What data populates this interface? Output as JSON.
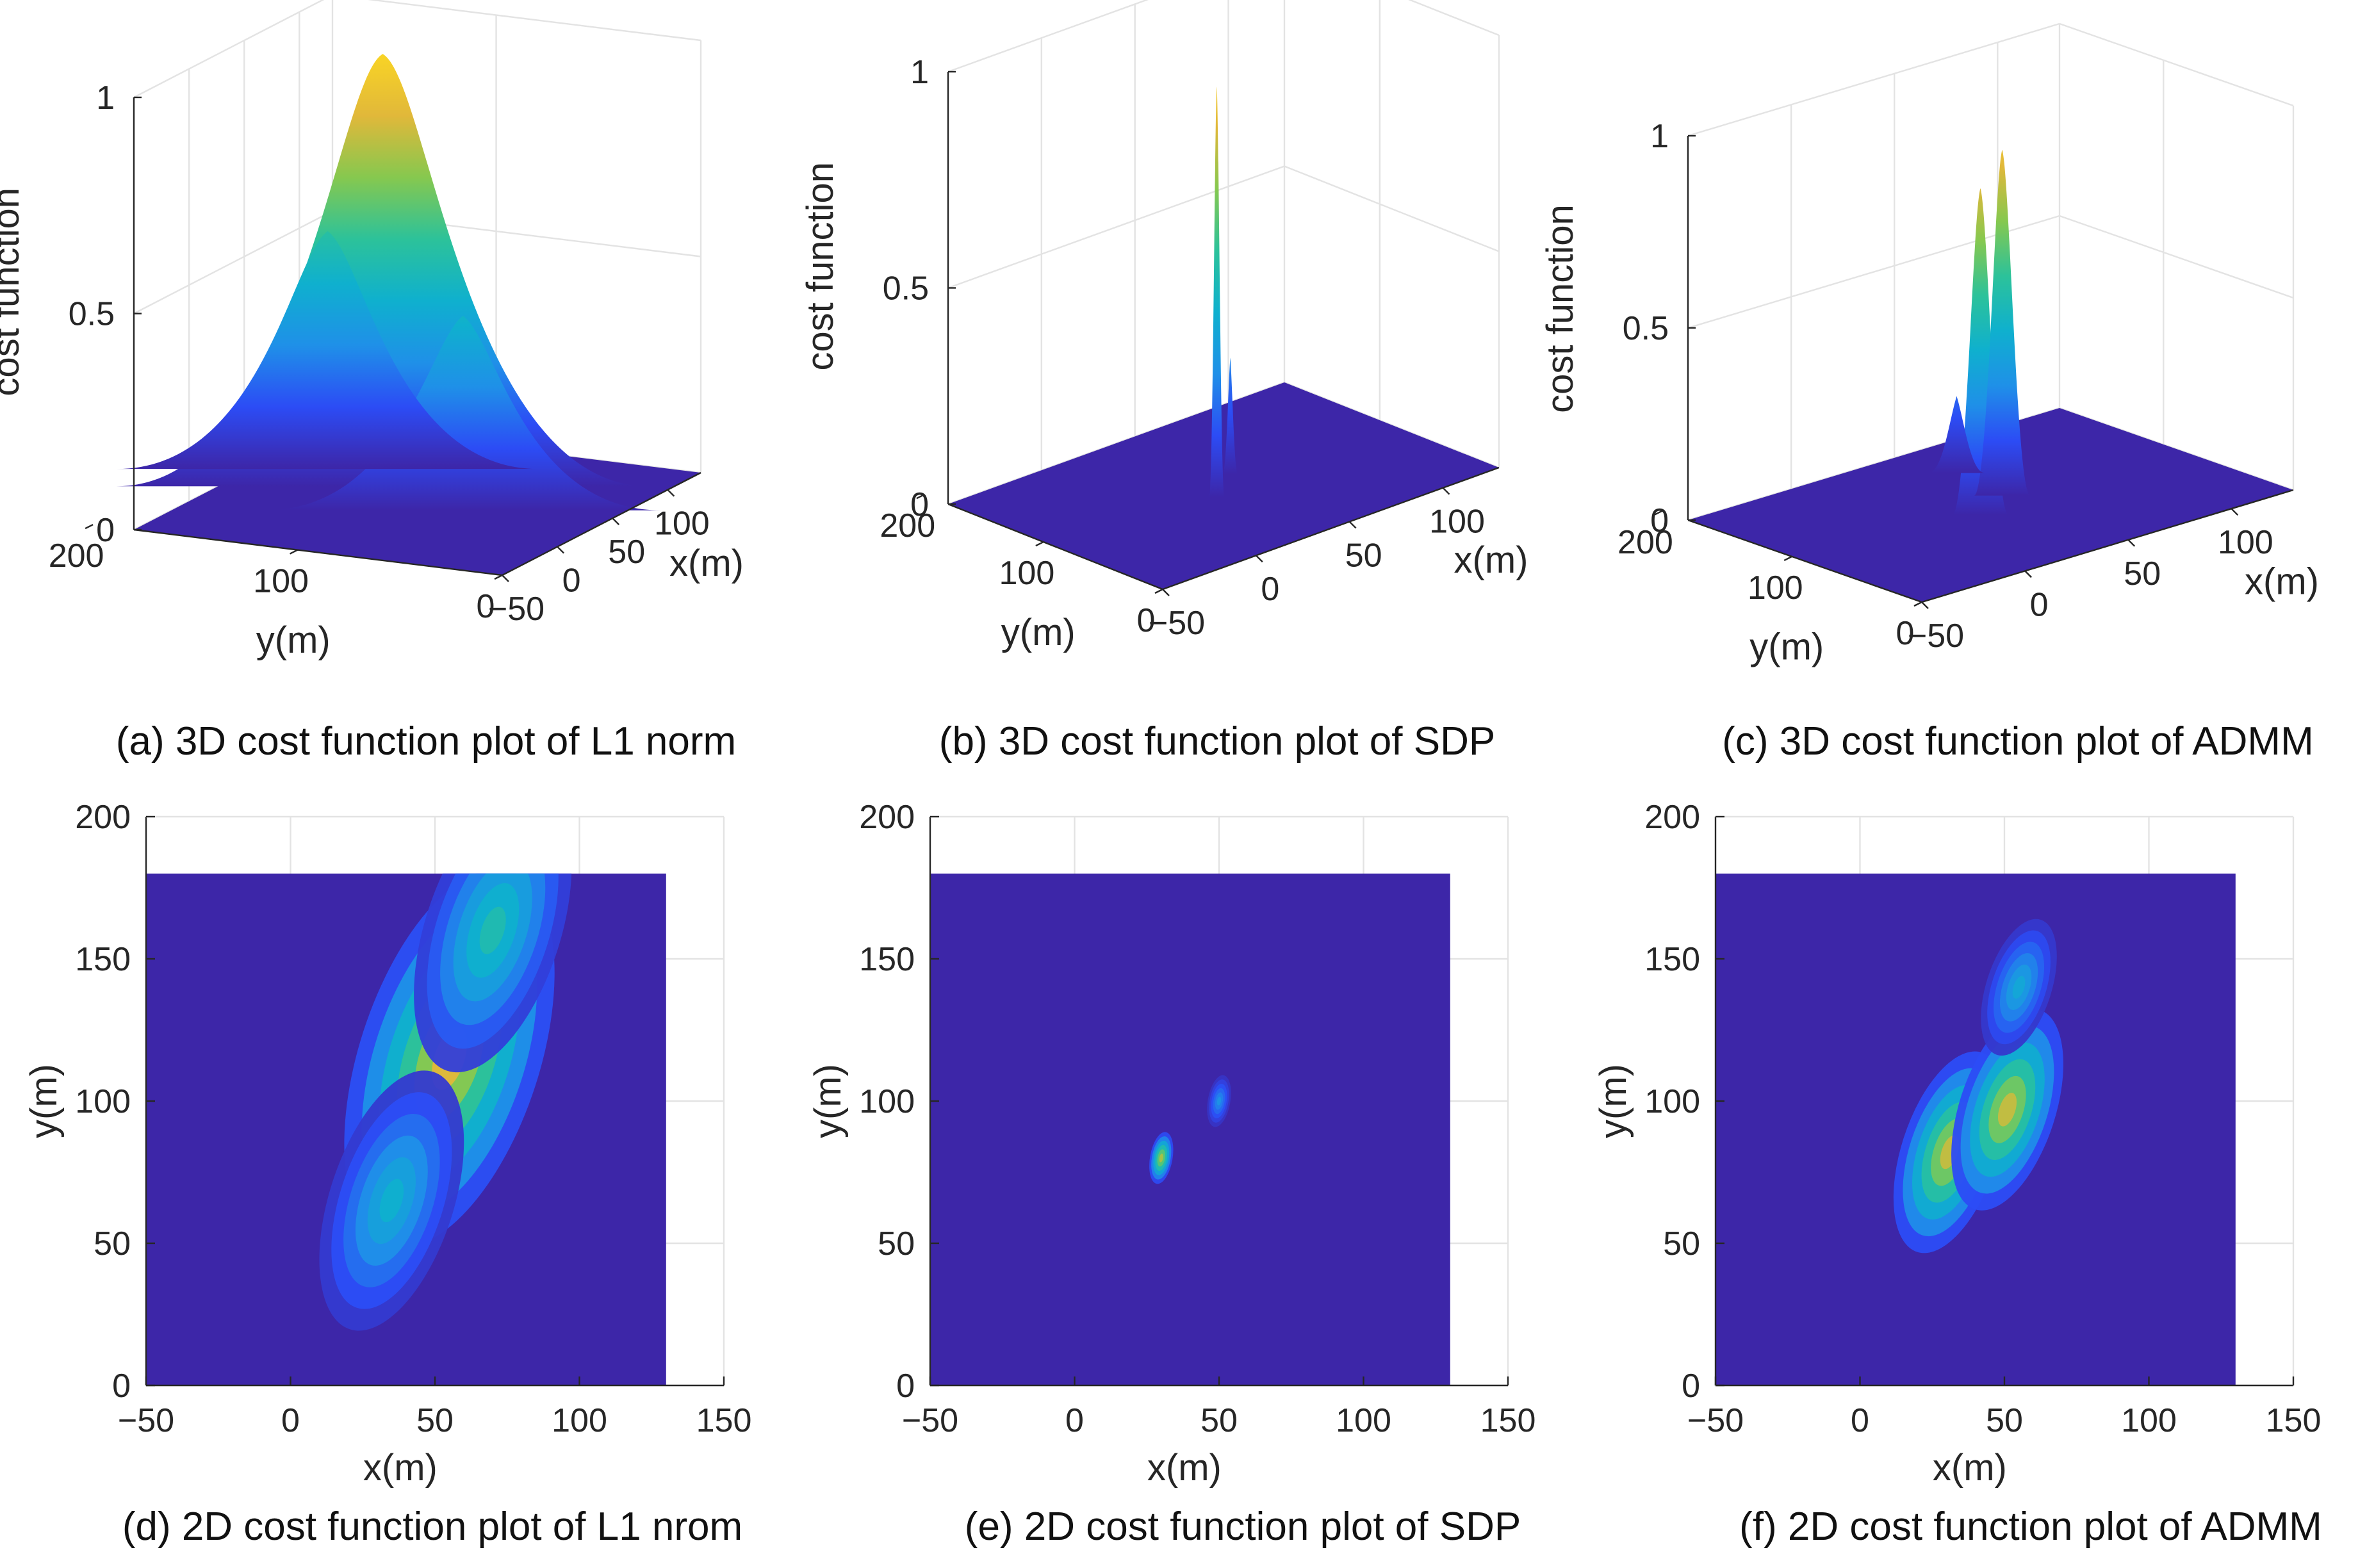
{
  "figure": {
    "captions": [
      "(a) 3D cost function plot of L1 norm",
      "(b) 3D cost function plot of SDP",
      "(c) 3D cost function plot of ADMM",
      "(d) 2D cost function plot of L1 nrom",
      "(e) 2D cost function plot of SDP",
      "(f) 2D cost function plot of ADMM"
    ]
  },
  "chart_data": [
    {
      "id": "a",
      "type": "surface3d",
      "title": "(a) 3D cost function plot of L1 norm",
      "xlabel": "x(m)",
      "ylabel": "y(m)",
      "zlabel": "cost function",
      "xlim": [
        -50,
        130
      ],
      "ylim": [
        0,
        180
      ],
      "zlim": [
        0,
        1
      ],
      "xticks": [
        -50,
        0,
        50,
        100
      ],
      "yticks": [
        0,
        100,
        200
      ],
      "zticks": [
        0,
        0.5,
        1
      ],
      "peaks": [
        {
          "x": 55,
          "y": 115,
          "z": 1.0
        },
        {
          "x": 35,
          "y": 65,
          "z": 0.45
        },
        {
          "x": 70,
          "y": 150,
          "z": 0.55
        }
      ]
    },
    {
      "id": "b",
      "type": "surface3d",
      "title": "(b) 3D cost function plot of SDP",
      "xlabel": "x(m)",
      "ylabel": "y(m)",
      "zlabel": "cost function",
      "xlim": [
        -50,
        130
      ],
      "ylim": [
        0,
        180
      ],
      "zlim": [
        0,
        1
      ],
      "xticks": [
        -50,
        0,
        50,
        100
      ],
      "yticks": [
        0,
        100,
        200
      ],
      "zticks": [
        0,
        0.5,
        1
      ],
      "peaks": [
        {
          "x": 30,
          "y": 80,
          "z": 0.95
        },
        {
          "x": 50,
          "y": 100,
          "z": 0.27
        }
      ]
    },
    {
      "id": "c",
      "type": "surface3d",
      "title": "(c) 3D cost function plot of ADMM",
      "xlabel": "x(m)",
      "ylabel": "y(m)",
      "zlabel": "cost function",
      "xlim": [
        -50,
        130
      ],
      "ylim": [
        0,
        180
      ],
      "zlim": [
        0,
        1
      ],
      "xticks": [
        -50,
        0,
        50,
        100
      ],
      "yticks": [
        0,
        100,
        200
      ],
      "zticks": [
        0,
        0.5,
        1
      ],
      "peaks": [
        {
          "x": 30,
          "y": 82,
          "z": 0.85
        },
        {
          "x": 50,
          "y": 97,
          "z": 0.9
        },
        {
          "x": 55,
          "y": 140,
          "z": 0.2
        }
      ]
    },
    {
      "id": "d",
      "type": "heatmap",
      "title": "(d) 2D cost function plot of L1 nrom",
      "xlabel": "x(m)",
      "ylabel": "y(m)",
      "xlim": [
        -50,
        150
      ],
      "ylim": [
        0,
        200
      ],
      "data_extent": {
        "x": [
          -50,
          130
        ],
        "y": [
          0,
          180
        ]
      },
      "xticks": [
        -50,
        0,
        50,
        100,
        150
      ],
      "yticks": [
        0,
        50,
        100,
        150,
        200
      ],
      "peaks": [
        {
          "x": 55,
          "y": 115,
          "z": 1.0
        },
        {
          "x": 35,
          "y": 65,
          "z": 0.5
        },
        {
          "x": 70,
          "y": 160,
          "z": 0.6
        }
      ]
    },
    {
      "id": "e",
      "type": "heatmap",
      "title": "(e) 2D cost function plot of SDP",
      "xlabel": "x(m)",
      "ylabel": "y(m)",
      "xlim": [
        -50,
        150
      ],
      "ylim": [
        0,
        200
      ],
      "data_extent": {
        "x": [
          -50,
          130
        ],
        "y": [
          0,
          180
        ]
      },
      "xticks": [
        -50,
        0,
        50,
        100,
        150
      ],
      "yticks": [
        0,
        50,
        100,
        150,
        200
      ],
      "peaks": [
        {
          "x": 30,
          "y": 80,
          "z": 0.9
        },
        {
          "x": 50,
          "y": 100,
          "z": 0.35
        }
      ]
    },
    {
      "id": "f",
      "type": "heatmap",
      "title": "(f) 2D cost function plot of ADMM",
      "xlabel": "x(m)",
      "ylabel": "y(m)",
      "xlim": [
        -50,
        150
      ],
      "ylim": [
        0,
        200
      ],
      "data_extent": {
        "x": [
          -50,
          130
        ],
        "y": [
          0,
          180
        ]
      },
      "xticks": [
        -50,
        0,
        50,
        100,
        150
      ],
      "yticks": [
        0,
        50,
        100,
        150,
        200
      ],
      "peaks": [
        {
          "x": 31,
          "y": 82,
          "z": 0.95
        },
        {
          "x": 51,
          "y": 97,
          "z": 0.95
        },
        {
          "x": 55,
          "y": 140,
          "z": 0.45
        }
      ]
    }
  ],
  "colormap": [
    "#3d26a8",
    "#2c4cf5",
    "#1f90e8",
    "#0fb0ce",
    "#2cc29a",
    "#86c84f",
    "#e1b83a",
    "#f9d425"
  ]
}
